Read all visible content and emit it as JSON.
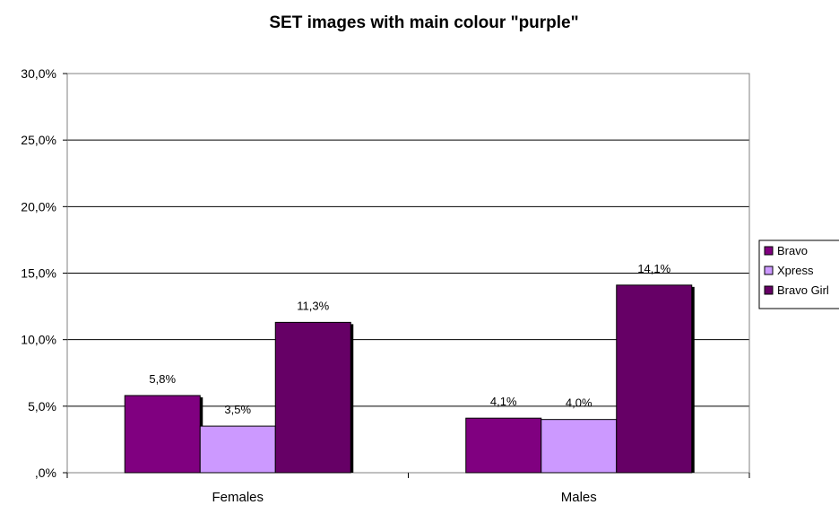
{
  "chart_data": {
    "type": "bar",
    "title": "SET images with main colour \"purple\"",
    "categories": [
      "Females",
      "Males"
    ],
    "series": [
      {
        "name": "Bravo",
        "values": [
          5.8,
          4.1
        ],
        "labels": [
          "5,8%",
          "4,1%"
        ],
        "color": "#800080"
      },
      {
        "name": "Xpress",
        "values": [
          3.5,
          4.0
        ],
        "labels": [
          "3,5%",
          "4,0%"
        ],
        "color": "#cc99ff"
      },
      {
        "name": "Bravo Girl",
        "values": [
          11.3,
          14.1
        ],
        "labels": [
          "11,3%",
          "14,1%"
        ],
        "color": "#660066"
      }
    ],
    "yticks": [
      ",0%",
      "5,0%",
      "10,0%",
      "15,0%",
      "20,0%",
      "25,0%",
      "30,0%"
    ],
    "ylim": [
      0,
      30
    ],
    "xlabel": "",
    "ylabel": "",
    "grid": true,
    "legend_position": "right"
  }
}
